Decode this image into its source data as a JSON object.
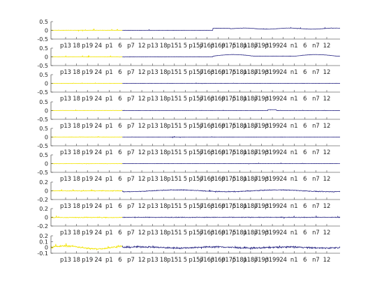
{
  "colors": {
    "background": "#ffffff",
    "axis": "#262626",
    "segment_a": "#f2e400",
    "segment_b": "#2c2a86"
  },
  "chart_data": {
    "type": "line",
    "layout": "9 vertically stacked subplots",
    "grid": false,
    "legend": "none",
    "x_tick_labels": [
      "p13",
      "18",
      "p19",
      "24",
      "p1",
      "6",
      "p7",
      "12",
      "p13",
      "18",
      "p151",
      "5",
      "p157",
      "p163",
      "p169",
      "p175",
      "p181",
      "p187",
      "p193",
      "p199",
      "24",
      "n1",
      "6",
      "n7",
      "12"
    ],
    "series_colors_note": "each subplot: first segment yellow, remainder dark blue",
    "subplots": [
      {
        "index": 1,
        "ylim": [
          -0.5,
          0.5
        ],
        "ytick_labels": [
          "0.5",
          "0",
          "-0.5"
        ]
      },
      {
        "index": 2,
        "ylim": [
          -0.5,
          0.5
        ],
        "ytick_labels": [
          "0.5",
          "0",
          "-0.5"
        ]
      },
      {
        "index": 3,
        "ylim": [
          -0.5,
          0.5
        ],
        "ytick_labels": [
          "0.5",
          "0",
          "-0.5"
        ]
      },
      {
        "index": 4,
        "ylim": [
          -0.5,
          0.5
        ],
        "ytick_labels": [
          "0.5",
          "0",
          "-0.5"
        ]
      },
      {
        "index": 5,
        "ylim": [
          -0.5,
          0.5
        ],
        "ytick_labels": [
          "0.5",
          "0",
          "-0.5"
        ]
      },
      {
        "index": 6,
        "ylim": [
          -0.5,
          0.5
        ],
        "ytick_labels": [
          "0.5",
          "0",
          "-0.5"
        ]
      },
      {
        "index": 7,
        "ylim": [
          -0.2,
          0.2
        ],
        "ytick_labels": [
          "0.2",
          "0",
          "-0.2"
        ]
      },
      {
        "index": 8,
        "ylim": [
          -0.2,
          0.2
        ],
        "ytick_labels": [
          "0.2",
          "0",
          "-0.2"
        ]
      },
      {
        "index": 9,
        "ylim": [
          -0.1,
          0.2
        ],
        "ytick_labels": [
          "0.2",
          "0.1",
          "0",
          "-0.1"
        ]
      }
    ]
  }
}
